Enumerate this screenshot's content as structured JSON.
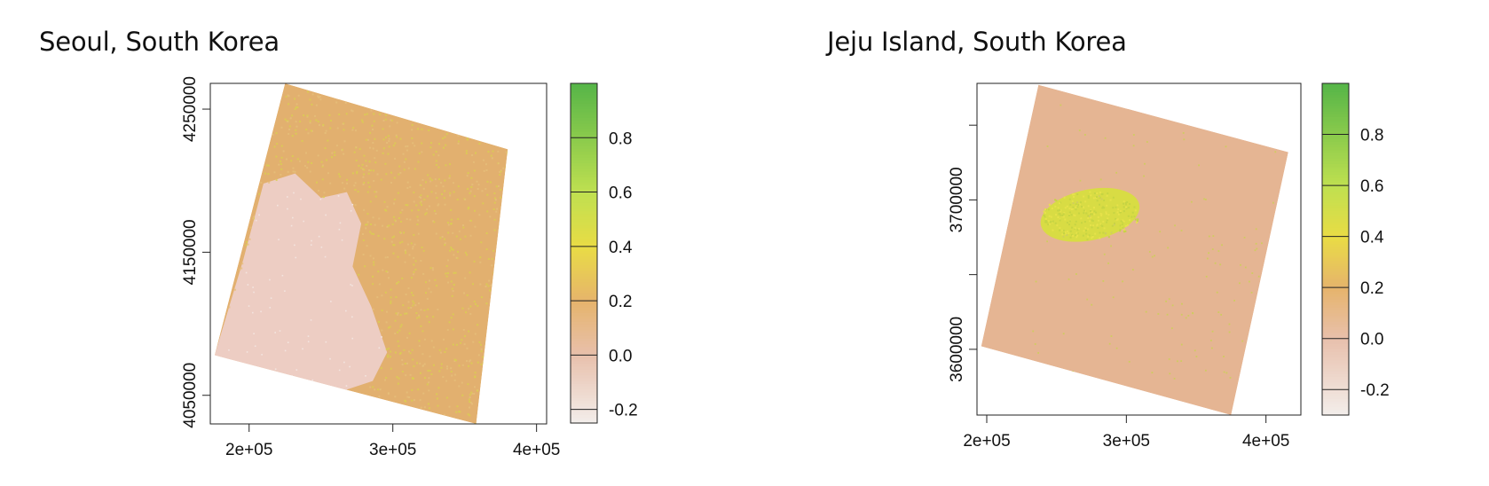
{
  "chart_data": [
    {
      "type": "heatmap",
      "title": "Seoul, South Korea",
      "x_ticks": [
        {
          "value": 200000,
          "label": "2e+05"
        },
        {
          "value": 300000,
          "label": "3e+05"
        },
        {
          "value": 400000,
          "label": "4e+05"
        }
      ],
      "y_ticks": [
        {
          "value": 4050000,
          "label": "4050000"
        },
        {
          "value": 4150000,
          "label": "4150000"
        },
        {
          "value": 4250000,
          "label": "4250000"
        }
      ],
      "xlim": [
        173000,
        407000
      ],
      "ylim": [
        4030000,
        4268000
      ],
      "raster_corners": [
        [
          225000,
          4268000
        ],
        [
          380000,
          4222000
        ],
        [
          358000,
          4030000
        ],
        [
          176000,
          4078000
        ]
      ],
      "water_outline": [
        [
          176000,
          4078000
        ],
        [
          196000,
          4145000
        ],
        [
          210000,
          4198000
        ],
        [
          232000,
          4205000
        ],
        [
          250000,
          4188000
        ],
        [
          268000,
          4192000
        ],
        [
          278000,
          4170000
        ],
        [
          272000,
          4140000
        ],
        [
          285000,
          4112000
        ],
        [
          296000,
          4080000
        ],
        [
          286000,
          4060000
        ],
        [
          256000,
          4050000
        ],
        [
          230000,
          4062000
        ]
      ],
      "colorbar": {
        "min": -0.25,
        "max": 1.0,
        "ticks": [
          {
            "value": -0.2,
            "label": "-0.2"
          },
          {
            "value": 0.0,
            "label": "0.0"
          },
          {
            "value": 0.2,
            "label": "0.2"
          },
          {
            "value": 0.4,
            "label": "0.4"
          },
          {
            "value": 0.6,
            "label": "0.6"
          },
          {
            "value": 0.8,
            "label": "0.8"
          }
        ],
        "stops": [
          {
            "value": -0.25,
            "color": "#f3eeeb"
          },
          {
            "value": 0.0,
            "color": "#e8c0ac"
          },
          {
            "value": 0.2,
            "color": "#e6b46c"
          },
          {
            "value": 0.4,
            "color": "#e9dc45"
          },
          {
            "value": 0.6,
            "color": "#bfe050"
          },
          {
            "value": 1.0,
            "color": "#56b548"
          }
        ]
      },
      "colors": {
        "water": "#edcdc3",
        "land": "#e2b06f",
        "speckle": "#d9cf50"
      }
    },
    {
      "type": "heatmap",
      "title": "Jeju Island, South Korea",
      "x_ticks": [
        {
          "value": 200000,
          "label": "2e+05"
        },
        {
          "value": 300000,
          "label": "3e+05"
        },
        {
          "value": 400000,
          "label": "4e+05"
        }
      ],
      "y_ticks": [
        {
          "value": 3600000,
          "label": "3600000"
        },
        {
          "value": 3700000,
          "label": "3700000"
        }
      ],
      "y_minor_ticks": [
        3650000,
        3750000
      ],
      "xlim": [
        193000,
        425000
      ],
      "ylim": [
        3556000,
        3778000
      ],
      "raster_corners": [
        [
          237000,
          3777000
        ],
        [
          416000,
          3732000
        ],
        [
          375000,
          3556000
        ],
        [
          196000,
          3602000
        ]
      ],
      "island_center": [
        274000,
        3690000
      ],
      "island_radii": [
        36000,
        17000
      ],
      "island_rotation_deg": -12,
      "colorbar": {
        "min": -0.3,
        "max": 1.0,
        "ticks": [
          {
            "value": -0.2,
            "label": "-0.2"
          },
          {
            "value": 0.0,
            "label": "0.0"
          },
          {
            "value": 0.2,
            "label": "0.2"
          },
          {
            "value": 0.4,
            "label": "0.4"
          },
          {
            "value": 0.6,
            "label": "0.6"
          },
          {
            "value": 0.8,
            "label": "0.8"
          }
        ],
        "stops": [
          {
            "value": -0.3,
            "color": "#f3eeeb"
          },
          {
            "value": 0.0,
            "color": "#e8c0ac"
          },
          {
            "value": 0.2,
            "color": "#e6b46c"
          },
          {
            "value": 0.4,
            "color": "#e9dc45"
          },
          {
            "value": 0.6,
            "color": "#bfe050"
          },
          {
            "value": 1.0,
            "color": "#56b548"
          }
        ]
      },
      "colors": {
        "sea": "#e5b593",
        "island": "#d8dc44",
        "speckle": "#cfcc60"
      }
    }
  ]
}
